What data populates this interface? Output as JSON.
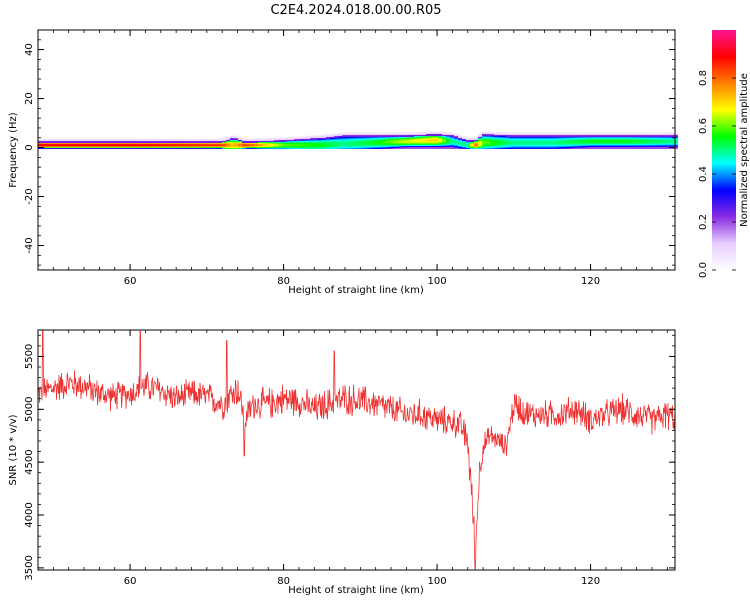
{
  "title": "C2E4.2024.018.00.00.R05",
  "chart_data": [
    {
      "type": "heatmap",
      "title": "",
      "xlabel": "Height of straight line (km)",
      "ylabel": "Frequency (Hz)",
      "xlim": [
        48,
        131
      ],
      "ylim": [
        -50,
        48
      ],
      "x_ticks": [
        60,
        80,
        100,
        120
      ],
      "y_ticks": [
        -40,
        -20,
        0,
        20,
        40
      ],
      "grid": false,
      "colorbar": {
        "label": "Normalized spectral amplitude",
        "range": [
          0,
          1
        ],
        "ticks": [
          0.0,
          0.2,
          0.4,
          0.6,
          0.8
        ],
        "colormap": [
          "#ffffff",
          "#e6ccff",
          "#8a2be2",
          "#0000ff",
          "#00ffff",
          "#00ff00",
          "#ffff00",
          "#ff8000",
          "#ff0000",
          "#ff1493"
        ]
      },
      "band": {
        "x": [
          48,
          60,
          72,
          73.5,
          75,
          80,
          85,
          88,
          92,
          96,
          100,
          102,
          104,
          105,
          106,
          110,
          115,
          120,
          125,
          131
        ],
        "lower_hz": [
          0,
          0,
          0,
          0,
          0,
          0,
          0,
          0,
          0,
          0,
          0,
          0,
          0,
          0,
          0,
          0,
          0,
          0,
          0,
          0
        ],
        "upper_hz": [
          2.5,
          2.5,
          2.5,
          4,
          2.5,
          3,
          4,
          5,
          5,
          5,
          5.5,
          5,
          3,
          3,
          5.5,
          5,
          5,
          5,
          5,
          5
        ],
        "peak_hz": [
          1,
          1,
          1,
          1,
          1,
          1,
          1,
          1.5,
          2,
          2.5,
          3,
          2.5,
          1,
          1,
          2,
          2,
          2,
          2.5,
          2.5,
          2.5
        ],
        "peak_level": [
          0.9,
          0.9,
          0.85,
          0.7,
          0.85,
          0.6,
          0.55,
          0.5,
          0.55,
          0.65,
          0.7,
          0.5,
          0.5,
          0.8,
          0.6,
          0.5,
          0.5,
          0.55,
          0.55,
          0.5
        ]
      }
    },
    {
      "type": "line",
      "title": "",
      "xlabel": "Height of straight line (km)",
      "ylabel": "SNR (10 * v/v)",
      "xlim": [
        48,
        131
      ],
      "ylim": [
        3480,
        5750
      ],
      "x_ticks": [
        60,
        80,
        100,
        120
      ],
      "y_ticks": [
        3500,
        4000,
        4500,
        5000,
        5500
      ],
      "grid": false,
      "series": [
        {
          "color": "#ee3333",
          "x": [
            48,
            50,
            52,
            54,
            56,
            58,
            60,
            62,
            64,
            66,
            68,
            70,
            72,
            74,
            75,
            76,
            78,
            80,
            82,
            84,
            86,
            88,
            90,
            92,
            94,
            96,
            98,
            100,
            102,
            103,
            104,
            104.5,
            105,
            105.5,
            106,
            107,
            108,
            109,
            110,
            112,
            114,
            116,
            118,
            120,
            122,
            124,
            126,
            128,
            130,
            131
          ],
          "y": [
            5150,
            5200,
            5250,
            5220,
            5150,
            5120,
            5150,
            5220,
            5180,
            5100,
            5150,
            5120,
            5050,
            5200,
            4900,
            5050,
            5050,
            5100,
            5080,
            5000,
            5050,
            5100,
            5080,
            5050,
            5000,
            4950,
            4950,
            4900,
            4880,
            4850,
            4700,
            4200,
            3650,
            4400,
            4650,
            4750,
            4700,
            4650,
            5050,
            4950,
            4950,
            4950,
            5000,
            4900,
            4950,
            5000,
            4950,
            4900,
            4950,
            4900
          ],
          "spread": [
            150,
            170,
            170,
            170,
            160,
            160,
            160,
            170,
            170,
            160,
            160,
            160,
            180,
            200,
            160,
            170,
            180,
            180,
            170,
            170,
            190,
            180,
            180,
            170,
            170,
            170,
            170,
            160,
            160,
            160,
            200,
            250,
            150,
            200,
            140,
            130,
            120,
            120,
            180,
            160,
            160,
            160,
            170,
            160,
            160,
            170,
            170,
            160,
            170,
            160
          ],
          "spikes": [
            [
              48.6,
              5750
            ],
            [
              61.3,
              5740
            ],
            [
              72.6,
              5650
            ],
            [
              86.6,
              5550
            ],
            [
              74.9,
              4560
            ],
            [
              105.0,
              3490
            ]
          ]
        }
      ]
    }
  ]
}
